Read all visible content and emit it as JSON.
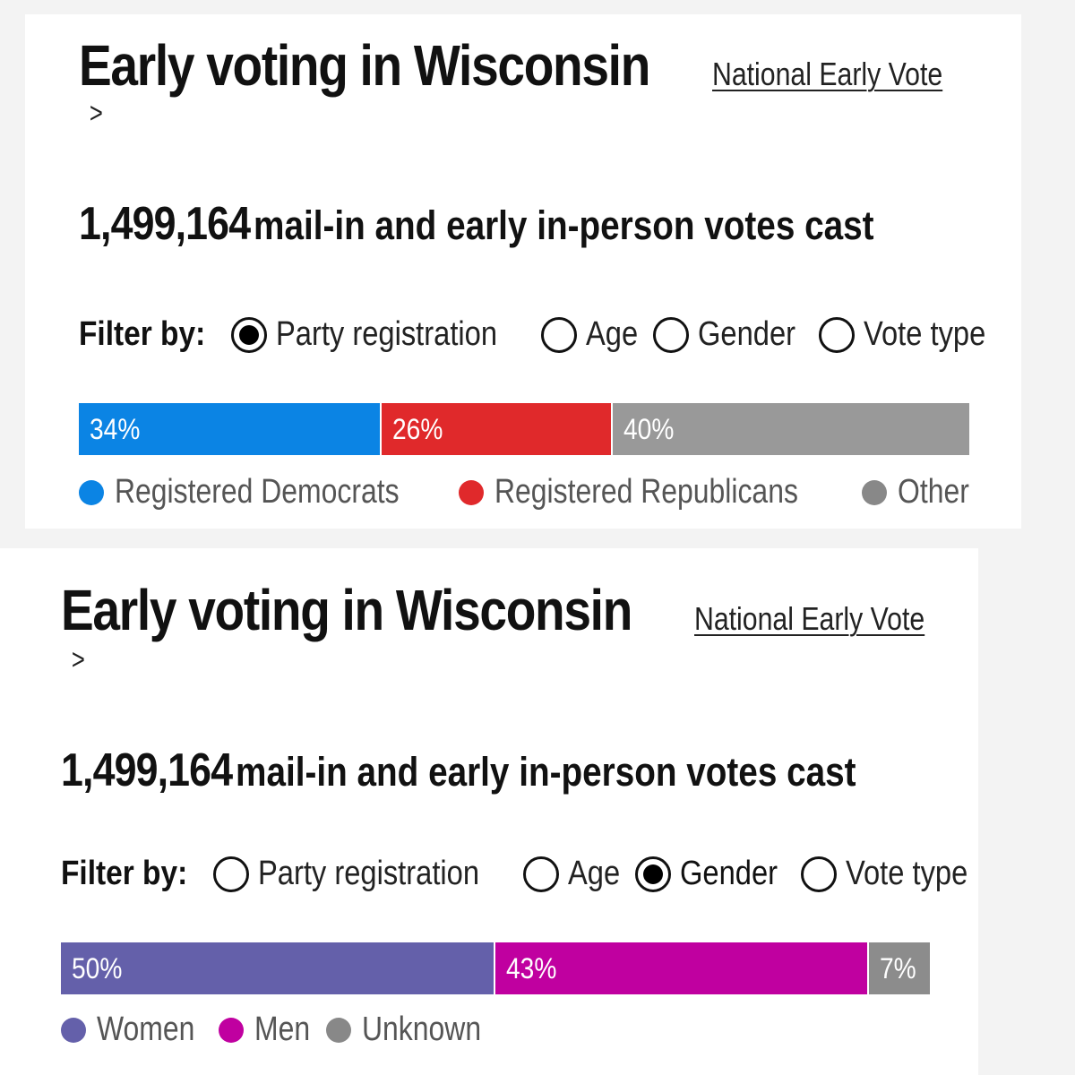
{
  "panels": [
    {
      "title": "Early voting in Wisconsin",
      "link_label": "National Early Vote",
      "chevron": ">",
      "votes_number": "1,499,164",
      "votes_text": "mail-in and early in-person votes cast",
      "filter_label": "Filter by:",
      "filters": [
        {
          "label": "Party registration",
          "checked": true
        },
        {
          "label": "Age",
          "checked": false
        },
        {
          "label": "Gender",
          "checked": false
        },
        {
          "label": "Vote type",
          "checked": false
        }
      ],
      "segments": [
        {
          "label": "34%",
          "value": 34,
          "color": "#0b84e4"
        },
        {
          "label": "26%",
          "value": 26,
          "color": "#e0292b"
        },
        {
          "label": "40%",
          "value": 40,
          "color": "#999999"
        }
      ],
      "legend": [
        {
          "label": "Registered Democrats",
          "color": "#0b84e4"
        },
        {
          "label": "Registered Republicans",
          "color": "#e0292b"
        },
        {
          "label": "Other",
          "color": "#888888"
        }
      ]
    },
    {
      "title": "Early voting in Wisconsin",
      "link_label": "National Early Vote",
      "chevron": ">",
      "votes_number": "1,499,164",
      "votes_text": "mail-in and early in-person votes cast",
      "filter_label": "Filter by:",
      "filters": [
        {
          "label": "Party registration",
          "checked": false
        },
        {
          "label": "Age",
          "checked": false
        },
        {
          "label": "Gender",
          "checked": true
        },
        {
          "label": "Vote type",
          "checked": false
        }
      ],
      "segments": [
        {
          "label": "50%",
          "value": 50,
          "color": "#6460aa"
        },
        {
          "label": "43%",
          "value": 43,
          "color": "#c000a0"
        },
        {
          "label": "7%",
          "value": 7,
          "color": "#8c8c8c"
        }
      ],
      "legend": [
        {
          "label": "Women",
          "color": "#6460aa"
        },
        {
          "label": "Men",
          "color": "#c000a0"
        },
        {
          "label": "Unknown",
          "color": "#888888"
        }
      ]
    }
  ]
}
